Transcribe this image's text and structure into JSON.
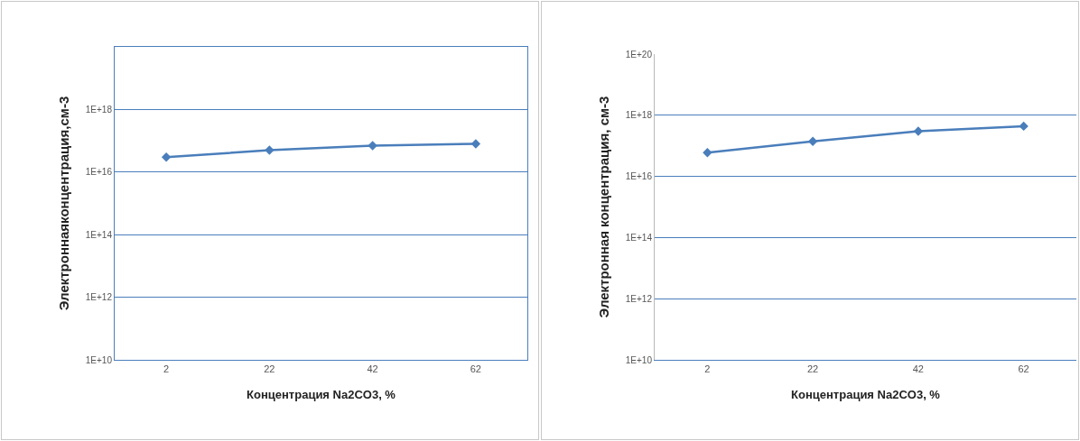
{
  "chart_data": [
    {
      "type": "line",
      "xlabel": "Концентрация Na2CO3, %",
      "ylabel": "Электроннаяконцентрация,см-3",
      "categories": [
        "2",
        "22",
        "42",
        "62"
      ],
      "series": [
        {
          "color": "#4a7ebb",
          "values": [
            3e+16,
            5e+16,
            7e+16,
            8e+16
          ]
        }
      ],
      "log": "y",
      "ylim": [
        10000000000.0,
        1e+20
      ],
      "yticks": [
        {
          "value": 10000000000.0,
          "label": "1E+10"
        },
        {
          "value": 1000000000000.0,
          "label": "1E+12"
        },
        {
          "value": 100000000000000.0,
          "label": "1E+14"
        },
        {
          "value": 1e+16,
          "label": "1E+16"
        },
        {
          "value": 1e+18,
          "label": "1E+18"
        }
      ],
      "grid": "y",
      "marker": "diamond",
      "line_style": "solid"
    },
    {
      "type": "line",
      "xlabel": "Концентрация Na2CO3, %",
      "ylabel": "Электронная концентрация, см-3",
      "categories": [
        "2",
        "22",
        "42",
        "62"
      ],
      "series": [
        {
          "color": "#4a7ebb",
          "values": [
            6e+16,
            1.4e+17,
            3e+17,
            4.4e+17
          ]
        }
      ],
      "log": "y",
      "ylim": [
        10000000000.0,
        1e+20
      ],
      "yticks": [
        {
          "value": 10000000000.0,
          "label": "1E+10"
        },
        {
          "value": 1000000000000.0,
          "label": "1E+12"
        },
        {
          "value": 100000000000000.0,
          "label": "1E+14"
        },
        {
          "value": 1e+16,
          "label": "1E+16"
        },
        {
          "value": 1e+18,
          "label": "1E+18"
        },
        {
          "value": 1e+20,
          "label": "1E+20"
        }
      ],
      "grid": "y",
      "marker": "diamond",
      "line_style": "solid"
    }
  ]
}
